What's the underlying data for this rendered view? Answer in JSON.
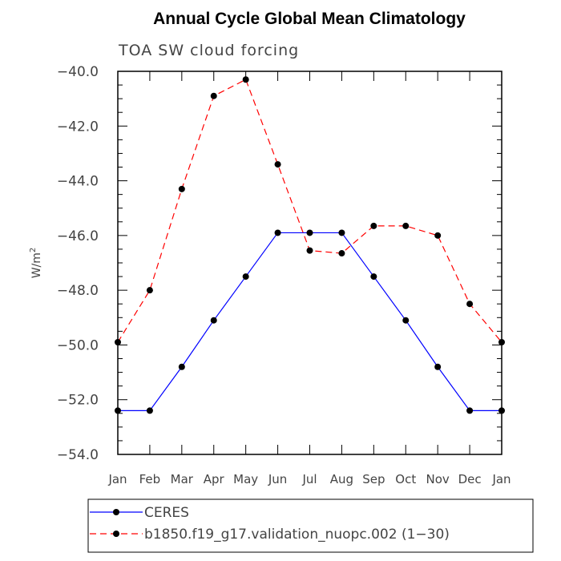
{
  "chart_data": {
    "type": "line",
    "title": "Annual Cycle Global Mean Climatology",
    "subtitle": "TOA SW cloud forcing",
    "xlabel": "",
    "ylabel": "W/m",
    "ylabel_superscript": "2",
    "ylim": [
      -54.0,
      -40.0
    ],
    "yticks": [
      -40.0,
      -42.0,
      -44.0,
      -46.0,
      -48.0,
      -50.0,
      -52.0,
      -54.0
    ],
    "ytick_labels": [
      "−40.0",
      "−42.0",
      "−44.0",
      "−46.0",
      "−48.0",
      "−50.0",
      "−52.0",
      "−54.0"
    ],
    "categories": [
      "Jan",
      "Feb",
      "Mar",
      "Apr",
      "May",
      "Jun",
      "Jul",
      "Aug",
      "Sep",
      "Oct",
      "Nov",
      "Dec",
      "Jan"
    ],
    "grid": false,
    "legend_position": "bottom-left",
    "series": [
      {
        "name": "CERES",
        "color": "#0000ff",
        "dashed": false,
        "values": [
          -52.4,
          -52.4,
          -50.8,
          -49.1,
          -47.5,
          -45.9,
          -45.9,
          -45.9,
          -47.5,
          -49.1,
          -50.8,
          -52.4,
          -52.4
        ]
      },
      {
        "name": "b1850.f19_g17.validation_nuopc.002 (1−30)",
        "color": "#ff0000",
        "dashed": true,
        "values": [
          -49.9,
          -48.0,
          -44.3,
          -40.9,
          -40.3,
          -43.4,
          -46.55,
          -46.65,
          -45.65,
          -45.65,
          -46.0,
          -48.5,
          -49.9
        ]
      }
    ]
  }
}
